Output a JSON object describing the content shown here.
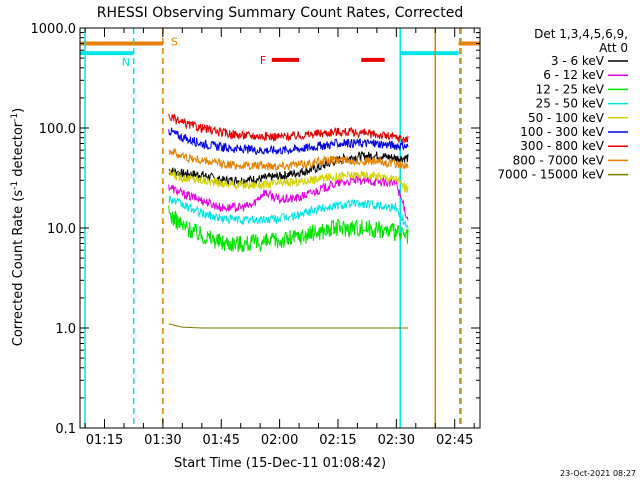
{
  "chart_data": {
    "type": "line",
    "title": "RHESSI Observing Summary Count Rates, Corrected",
    "xlabel": "Start Time (15-Dec-11 01:08:42)",
    "ylabel": "Corrected Count Rate (s",
    "ylabel_sup1": "-1",
    "ylabel_mid": " detector",
    "ylabel_sup2": "-1",
    "ylabel_end": ")",
    "y_scale": "log",
    "ylim": [
      0.1,
      1000
    ],
    "xlim_minutes": [
      68.7,
      171.5
    ],
    "x_ticks": [
      {
        "minute": 75,
        "label": "01:15"
      },
      {
        "minute": 90,
        "label": "01:30"
      },
      {
        "minute": 105,
        "label": "01:45"
      },
      {
        "minute": 120,
        "label": "02:00"
      },
      {
        "minute": 135,
        "label": "02:15"
      },
      {
        "minute": 150,
        "label": "02:30"
      },
      {
        "minute": 165,
        "label": "02:45"
      }
    ],
    "y_ticks": [
      {
        "value": 0.1,
        "label": "0.1"
      },
      {
        "value": 1,
        "label": "1.0"
      },
      {
        "value": 10,
        "label": "10.0"
      },
      {
        "value": 100,
        "label": "100.0"
      },
      {
        "value": 1000,
        "label": "1000.0"
      }
    ],
    "legend": {
      "placement": "right",
      "header1": "Det 1,3,4,5,6,9,",
      "header2": "Att 0"
    },
    "series": [
      {
        "name": "3 - 6 keV",
        "color": "#000000",
        "points": [
          [
            91.5,
            38
          ],
          [
            95,
            35
          ],
          [
            100,
            34
          ],
          [
            105,
            30
          ],
          [
            110,
            30
          ],
          [
            115,
            31
          ],
          [
            120,
            33
          ],
          [
            125,
            36
          ],
          [
            130,
            40
          ],
          [
            135,
            48
          ],
          [
            140,
            52
          ],
          [
            145,
            53
          ],
          [
            150,
            50
          ],
          [
            153,
            50
          ]
        ]
      },
      {
        "name": "6 - 12 keV",
        "color": "#e600e6",
        "points": [
          [
            91.5,
            26
          ],
          [
            95,
            22
          ],
          [
            100,
            19
          ],
          [
            105,
            16
          ],
          [
            110,
            16
          ],
          [
            113,
            17
          ],
          [
            116,
            23
          ],
          [
            120,
            19
          ],
          [
            125,
            20
          ],
          [
            130,
            24
          ],
          [
            135,
            28
          ],
          [
            140,
            30
          ],
          [
            145,
            29
          ],
          [
            150,
            28
          ],
          [
            153,
            12
          ]
        ]
      },
      {
        "name": "12 - 25 keV",
        "color": "#00e600",
        "points": [
          [
            91.5,
            14
          ],
          [
            95,
            10.5
          ],
          [
            100,
            8.5
          ],
          [
            105,
            7.2
          ],
          [
            110,
            7
          ],
          [
            115,
            7.1
          ],
          [
            120,
            7.5
          ],
          [
            125,
            8.2
          ],
          [
            130,
            9.2
          ],
          [
            135,
            10
          ],
          [
            140,
            10.2
          ],
          [
            145,
            9.8
          ],
          [
            150,
            9
          ],
          [
            153,
            8
          ]
        ]
      },
      {
        "name": "25 - 50 keV",
        "color": "#00e6e6",
        "points": [
          [
            91.5,
            20
          ],
          [
            95,
            17
          ],
          [
            100,
            14
          ],
          [
            105,
            12.5
          ],
          [
            110,
            12
          ],
          [
            115,
            12
          ],
          [
            120,
            12.5
          ],
          [
            125,
            13.5
          ],
          [
            130,
            15.5
          ],
          [
            135,
            17
          ],
          [
            140,
            17.5
          ],
          [
            145,
            17
          ],
          [
            150,
            16
          ],
          [
            153,
            10
          ]
        ]
      },
      {
        "name": "50 - 100 keV",
        "color": "#d2d200",
        "points": [
          [
            91.5,
            35
          ],
          [
            95,
            32
          ],
          [
            100,
            30
          ],
          [
            105,
            28
          ],
          [
            110,
            27
          ],
          [
            115,
            27
          ],
          [
            120,
            28
          ],
          [
            125,
            29
          ],
          [
            130,
            31
          ],
          [
            135,
            33
          ],
          [
            140,
            34
          ],
          [
            145,
            33
          ],
          [
            150,
            31
          ],
          [
            153,
            24
          ]
        ]
      },
      {
        "name": "100 - 300 keV",
        "color": "#0000e6",
        "points": [
          [
            91.5,
            95
          ],
          [
            95,
            80
          ],
          [
            100,
            70
          ],
          [
            105,
            64
          ],
          [
            110,
            61
          ],
          [
            115,
            60
          ],
          [
            120,
            60
          ],
          [
            125,
            62
          ],
          [
            130,
            66
          ],
          [
            135,
            70
          ],
          [
            140,
            71
          ],
          [
            145,
            70
          ],
          [
            150,
            67
          ],
          [
            153,
            65
          ]
        ]
      },
      {
        "name": "300 - 800 keV",
        "color": "#e60000",
        "points": [
          [
            91.5,
            130
          ],
          [
            95,
            112
          ],
          [
            100,
            100
          ],
          [
            105,
            90
          ],
          [
            110,
            85
          ],
          [
            115,
            83
          ],
          [
            120,
            82
          ],
          [
            125,
            84
          ],
          [
            130,
            88
          ],
          [
            135,
            92
          ],
          [
            140,
            90
          ],
          [
            145,
            86
          ],
          [
            150,
            80
          ],
          [
            153,
            76
          ]
        ]
      },
      {
        "name": "800 - 7000 keV",
        "color": "#e68200",
        "points": [
          [
            91.5,
            60
          ],
          [
            95,
            52
          ],
          [
            100,
            47
          ],
          [
            105,
            44
          ],
          [
            110,
            42
          ],
          [
            115,
            42
          ],
          [
            120,
            42
          ],
          [
            125,
            43
          ],
          [
            130,
            46
          ],
          [
            135,
            48
          ],
          [
            140,
            47
          ],
          [
            145,
            46
          ],
          [
            150,
            44
          ],
          [
            153,
            40
          ]
        ]
      },
      {
        "name": "7000 - 15000 keV",
        "color": "#787800",
        "points": [
          [
            91.5,
            1.1
          ],
          [
            95,
            1.02
          ],
          [
            100,
            1.0
          ],
          [
            110,
            1.0
          ],
          [
            120,
            1.0
          ],
          [
            130,
            1.0
          ],
          [
            140,
            1.0
          ],
          [
            150,
            1.0
          ],
          [
            153,
            1.0
          ]
        ]
      }
    ],
    "flag_bars": [
      {
        "label": "S",
        "color": "#e68200",
        "y_value": 700,
        "segments": [
          [
            68.7,
            90
          ],
          [
            166,
            171.5
          ]
        ]
      },
      {
        "label": "N",
        "color": "#00e6e6",
        "y_value": 560,
        "segments": [
          [
            68.7,
            82.5
          ],
          [
            151,
            166
          ]
        ]
      },
      {
        "label": "F",
        "color": "#e60000",
        "y_value": 480,
        "segments": [
          [
            118,
            125
          ],
          [
            141,
            147
          ]
        ]
      }
    ],
    "vertical_markers": [
      {
        "minute": 70,
        "color": "#00e6e6",
        "style": "solid"
      },
      {
        "minute": 82.5,
        "color": "#00e6e6",
        "style": "dashed"
      },
      {
        "minute": 90,
        "color": "#e68200",
        "style": "dashed"
      },
      {
        "minute": 151,
        "color": "#00e6e6",
        "style": "solid"
      },
      {
        "minute": 160,
        "color": "#e68200",
        "style": "solid"
      },
      {
        "minute": 166.3,
        "color": "#00e6e6",
        "style": "dashed"
      },
      {
        "minute": 166.6,
        "color": "#e68200",
        "style": "dashed"
      }
    ],
    "timestamp": "23-Oct-2021 08:27"
  }
}
